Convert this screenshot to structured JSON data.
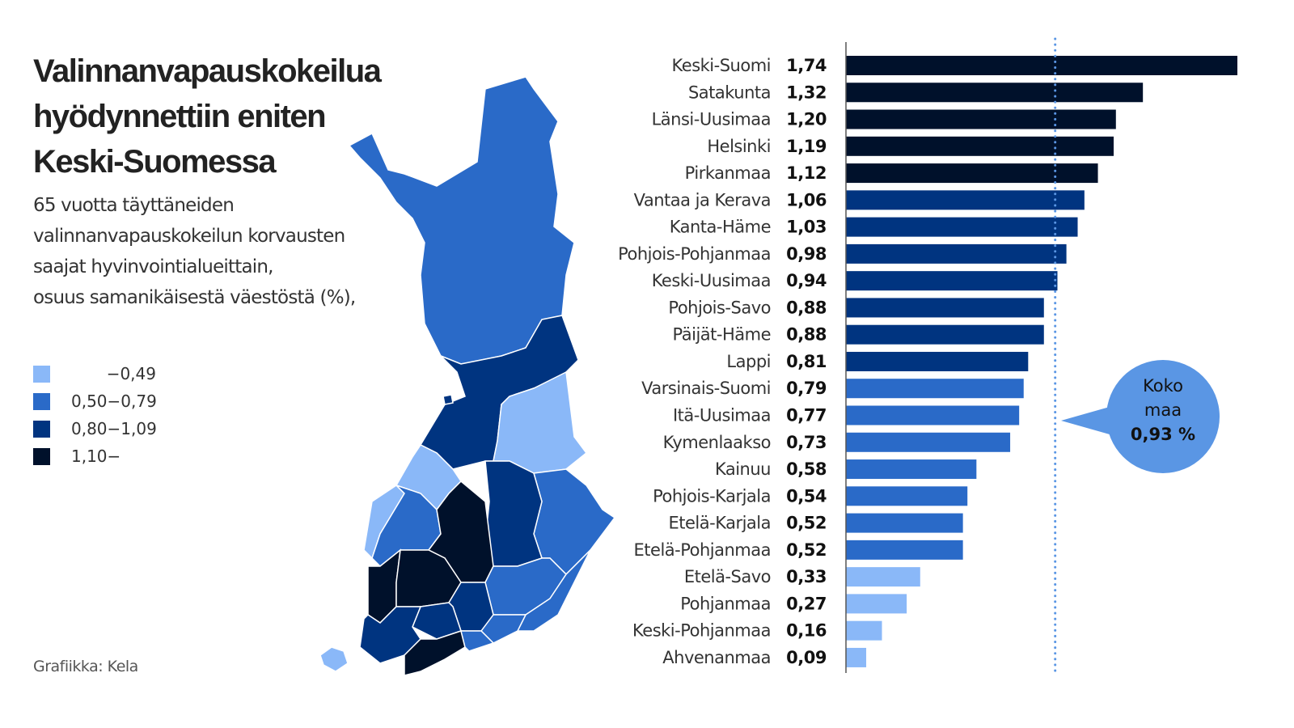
{
  "title": "Valinnanvapauskokeilua hyödynnettiin eniten Keski-Suomessa",
  "subtitle_lines": [
    "65 vuotta täyttäneiden",
    "valinnanvapauskokeilun korvausten",
    "saajat hyvinvointialueittain,",
    "osuus samanikäisestä väestöstä (%),"
  ],
  "legend": [
    {
      "label": "−0,49",
      "color": "#8ab8f8"
    },
    {
      "label": "0,50−0,79",
      "color": "#2a6ac8"
    },
    {
      "label": "0,80−1,09",
      "color": "#003480"
    },
    {
      "label": "1,10−",
      "color": "#00112b"
    }
  ],
  "credit": "Grafiikka: Kela",
  "callout": {
    "line1": "Koko",
    "line2": "maa",
    "value": "0,93 %",
    "color": "#5a96e4"
  },
  "chart_data": {
    "type": "bar",
    "orientation": "horizontal",
    "categories": [
      "Keski-Suomi",
      "Satakunta",
      "Länsi-Uusimaa",
      "Helsinki",
      "Pirkanmaa",
      "Vantaa ja Kerava",
      "Kanta-Häme",
      "Pohjois-Pohjanmaa",
      "Keski-Uusimaa",
      "Pohjois-Savo",
      "Päijät-Häme",
      "Lappi",
      "Varsinais-Suomi",
      "Itä-Uusimaa",
      "Kymenlaakso",
      "Kainuu",
      "Pohjois-Karjala",
      "Etelä-Karjala",
      "Etelä-Pohjanmaa",
      "Etelä-Savo",
      "Pohjanmaa",
      "Keski-Pohjanmaa",
      "Ahvenanmaa"
    ],
    "values": [
      1.74,
      1.32,
      1.2,
      1.19,
      1.12,
      1.06,
      1.03,
      0.98,
      0.94,
      0.88,
      0.88,
      0.81,
      0.79,
      0.77,
      0.73,
      0.58,
      0.54,
      0.52,
      0.52,
      0.33,
      0.27,
      0.16,
      0.09
    ],
    "value_labels": [
      "1,74",
      "1,32",
      "1,20",
      "1,19",
      "1,12",
      "1,06",
      "1,03",
      "0,98",
      "0,94",
      "0,88",
      "0,88",
      "0,81",
      "0,79",
      "0,77",
      "0,73",
      "0,58",
      "0,54",
      "0,52",
      "0,52",
      "0,33",
      "0,27",
      "0,16",
      "0,09"
    ],
    "reference_line": {
      "label": "Koko maa",
      "value": 0.93
    },
    "xlim": [
      0,
      1.74
    ],
    "grid": false
  }
}
